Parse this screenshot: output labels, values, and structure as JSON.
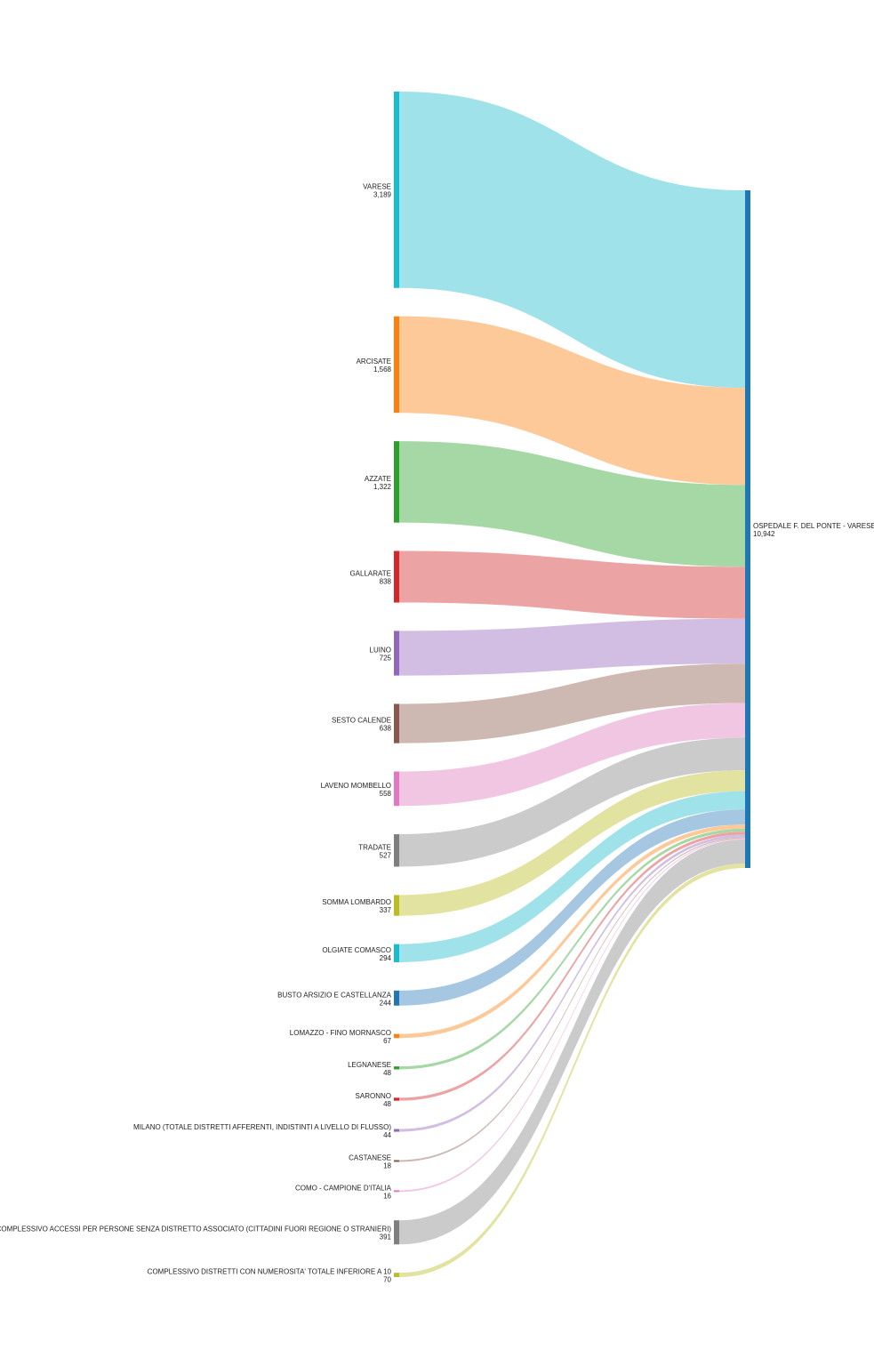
{
  "chart_data": {
    "type": "sankey",
    "target": {
      "name": "OSPEDALE F. DEL PONTE - VARESE",
      "value": "10,942",
      "color": "#1f77b4"
    },
    "sources": [
      {
        "name": "VARESE",
        "value": 3189,
        "label_value": "3,189",
        "color": "#17becf",
        "link_color": "#9ae0e8"
      },
      {
        "name": "ARCISATE",
        "value": 1568,
        "label_value": "1,568",
        "color": "#ff7f0e",
        "link_color": "#fec692"
      },
      {
        "name": "AZZATE",
        "value": 1322,
        "label_value": "1,322",
        "color": "#2ca02c",
        "link_color": "#a0d6a0"
      },
      {
        "name": "GALLARATE",
        "value": 838,
        "label_value": "838",
        "color": "#d62728",
        "link_color": "#eb9e9e"
      },
      {
        "name": "LUINO",
        "value": 725,
        "label_value": "725",
        "color": "#9467bd",
        "link_color": "#cfbae0"
      },
      {
        "name": "SESTO CALENDE",
        "value": 638,
        "label_value": "638",
        "color": "#8c564b",
        "link_color": "#cbb4ae"
      },
      {
        "name": "LAVENO MOMBELLO",
        "value": 558,
        "label_value": "558",
        "color": "#e377c2",
        "link_color": "#f0c3e2"
      },
      {
        "name": "TRADATE",
        "value": 527,
        "label_value": "527",
        "color": "#7f7f7f",
        "link_color": "#c8c8c8"
      },
      {
        "name": "SOMMA LOMBARDO",
        "value": 337,
        "label_value": "337",
        "color": "#bcbd22",
        "link_color": "#e0e19c"
      },
      {
        "name": "OLGIATE COMASCO",
        "value": 294,
        "label_value": "294",
        "color": "#17becf",
        "link_color": "#9ae0e8"
      },
      {
        "name": "BUSTO ARSIZIO E CASTELLANZA",
        "value": 244,
        "label_value": "244",
        "color": "#1f77b4",
        "link_color": "#a1c4e0"
      },
      {
        "name": "LOMAZZO - FINO MORNASCO",
        "value": 67,
        "label_value": "67",
        "color": "#ff7f0e",
        "link_color": "#fec692"
      },
      {
        "name": "LEGNANESE",
        "value": 48,
        "label_value": "48",
        "color": "#2ca02c",
        "link_color": "#a0d6a0"
      },
      {
        "name": "SARONNO",
        "value": 48,
        "label_value": "48",
        "color": "#d62728",
        "link_color": "#eb9e9e"
      },
      {
        "name": "MILANO (TOTALE DISTRETTI AFFERENTI, INDISTINTI A LIVELLO DI FLUSSO)",
        "value": 44,
        "label_value": "44",
        "color": "#9467bd",
        "link_color": "#cfbae0"
      },
      {
        "name": "CASTANESE",
        "value": 18,
        "label_value": "18",
        "color": "#8c564b",
        "link_color": "#cbb4ae"
      },
      {
        "name": "COMO - CAMPIONE D'ITALIA",
        "value": 16,
        "label_value": "16",
        "color": "#e377c2",
        "link_color": "#f0c3e2"
      },
      {
        "name": "DATO COMPLESSIVO ACCESSI PER PERSONE SENZA DISTRETTO ASSOCIATO (CITTADINI FUORI REGIONE O STRANIERI)",
        "value": 391,
        "label_value": "391",
        "color": "#7f7f7f",
        "link_color": "#c8c8c8"
      },
      {
        "name": "COMPLESSIVO DISTRETTI CON NUMEROSITA' TOTALE INFERIORE A 10",
        "value": 70,
        "label_value": "70",
        "color": "#bcbd22",
        "link_color": "#e0e19c"
      }
    ]
  }
}
